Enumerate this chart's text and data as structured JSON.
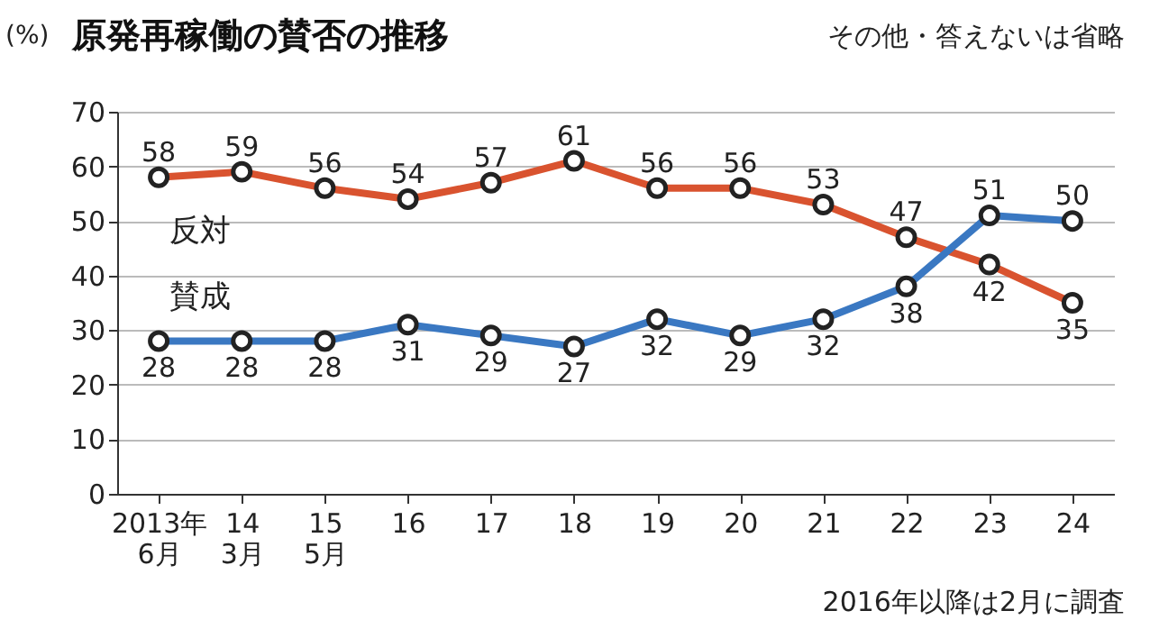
{
  "chart_data": {
    "type": "line",
    "title": "原発再稼働の賛否の推移",
    "ylabel": "(%)",
    "categories": [
      "2013年\n6月",
      "14\n3月",
      "15\n5月",
      "16",
      "17",
      "18",
      "19",
      "20",
      "21",
      "22",
      "23",
      "24"
    ],
    "series": [
      {
        "name": "反対",
        "color": "#d9532f",
        "values": [
          58,
          59,
          56,
          54,
          57,
          61,
          56,
          56,
          53,
          47,
          42,
          35
        ]
      },
      {
        "name": "賛成",
        "color": "#3a78c2",
        "values": [
          28,
          28,
          28,
          31,
          29,
          27,
          32,
          29,
          32,
          38,
          51,
          50
        ]
      }
    ],
    "ylim": [
      0,
      70
    ],
    "yticks": [
      0,
      10,
      20,
      30,
      40,
      50,
      60,
      70
    ],
    "grid": "y",
    "data_labels": true,
    "marker": "circle",
    "line_style": "solid",
    "legend": false,
    "annotations": [
      "その他・答えないは省略",
      "2016年以降は2月に調査"
    ]
  }
}
